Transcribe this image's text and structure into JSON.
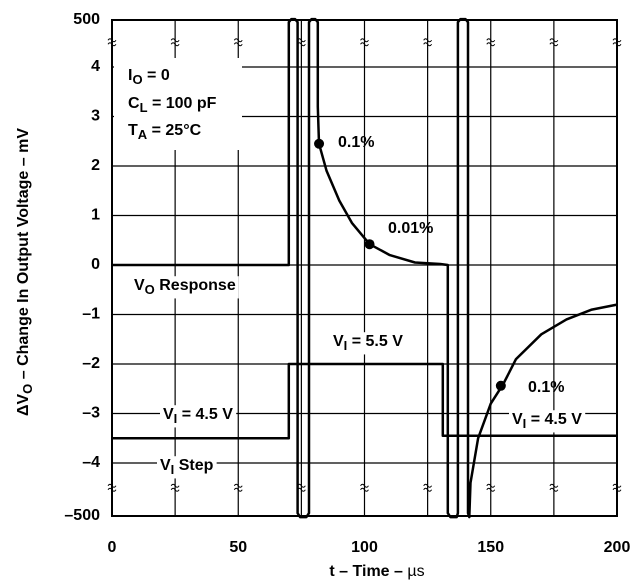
{
  "chart_data": {
    "type": "line",
    "xlabel": {
      "pre": "t – Time – ",
      "unit": "µs"
    },
    "ylabel": {
      "pre": "ΔV",
      "sub": "O",
      "rest": " – Change In Output Voltage – mV"
    },
    "xlim": [
      0,
      200
    ],
    "xticks": [
      0,
      50,
      100,
      150,
      200
    ],
    "xgrid": [
      25,
      75,
      125,
      175
    ],
    "ylim": [
      -500,
      500
    ],
    "axis_break": [
      -4.5,
      4.5
    ],
    "yticks": [
      500,
      4,
      3,
      2,
      1,
      0,
      {
        "value": -1,
        "label": "–1"
      },
      {
        "value": -2,
        "label": "–2"
      },
      {
        "value": -3,
        "label": "–3"
      },
      {
        "value": -4,
        "label": "–4"
      },
      {
        "value": -500,
        "label": "–500"
      }
    ],
    "grid": true,
    "color": "#000000",
    "series": [
      {
        "x": [
          0,
          70,
          70,
          71,
          72.5,
          73.5,
          73.5,
          74.5,
          77,
          78,
          78,
          79,
          80.5,
          81.5,
          81.5,
          82,
          85,
          90,
          95,
          102,
          110,
          120,
          130,
          133,
          133,
          134,
          136.5,
          137,
          137,
          138,
          140,
          141,
          141,
          141.5,
          142,
          145,
          150,
          155,
          160,
          170,
          180,
          190,
          200
        ],
        "values": [
          0,
          0,
          450,
          520,
          520,
          450,
          -450,
          -520,
          -520,
          -450,
          450,
          520,
          520,
          450,
          3.2,
          2.45,
          1.9,
          1.3,
          0.85,
          0.42,
          0.2,
          0.05,
          0.02,
          0,
          -450,
          -520,
          -520,
          -450,
          450,
          520,
          520,
          450,
          -450,
          -520,
          -4.4,
          -3.5,
          -2.8,
          -2.4,
          -1.9,
          -1.4,
          -1.1,
          -0.9,
          -0.8
        ]
      },
      {
        "x": [
          0,
          70,
          70,
          131,
          131,
          200
        ],
        "values": [
          -3.5,
          -3.5,
          -2,
          -2,
          -3.45,
          -3.45
        ]
      }
    ],
    "markers": [
      {
        "x": 82,
        "y": 2.45,
        "label": "0.1%"
      },
      {
        "x": 102,
        "y": 0.42,
        "label": "0.01%"
      },
      {
        "x": 154,
        "y": -2.44,
        "label": "0.1%"
      }
    ],
    "annotations": [
      {
        "main": "I",
        "sub": "O",
        "rest": " = 0"
      },
      {
        "main": "C",
        "sub": "L",
        "rest": " = 100 pF"
      },
      {
        "main": "T",
        "sub": "A",
        "rest": " = 25°C"
      },
      {
        "main": "V",
        "sub": "O",
        "rest": " Response"
      },
      {
        "main": "V",
        "sub": "I",
        "rest": " = 5.5 V"
      },
      {
        "main": "V",
        "sub": "I",
        "rest": " = 4.5 V"
      },
      {
        "main": "V",
        "sub": "I",
        "rest": " Step"
      },
      {
        "main": "V",
        "sub": "I",
        "rest": " = 4.5 V"
      }
    ]
  }
}
